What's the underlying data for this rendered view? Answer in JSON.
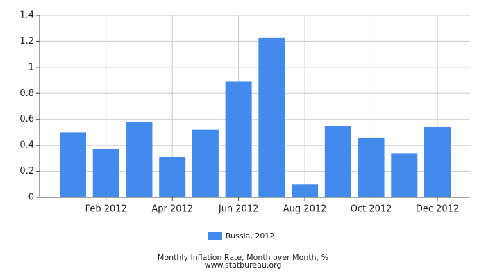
{
  "chart_data": {
    "type": "bar",
    "title": "Monthly Inflation Rate, Month over Month, %",
    "subtitle": "www.statbureau.org",
    "categories": [
      null,
      "Feb 2012",
      null,
      "Apr 2012",
      null,
      "Jun 2012",
      null,
      "Aug 2012",
      null,
      "Oct 2012",
      null,
      "Dec 2012"
    ],
    "series": [
      {
        "name": "Russia, 2012",
        "color": "#428bed",
        "values": [
          0.5,
          0.37,
          0.58,
          0.31,
          0.52,
          0.89,
          1.23,
          0.1,
          0.55,
          0.46,
          0.34,
          0.54
        ]
      }
    ],
    "ylim": [
      0,
      1.4
    ],
    "yticks": [
      0,
      0.2,
      0.4,
      0.6,
      0.8,
      1,
      1.2,
      1.4
    ],
    "grid": true,
    "legend": "bottom"
  }
}
